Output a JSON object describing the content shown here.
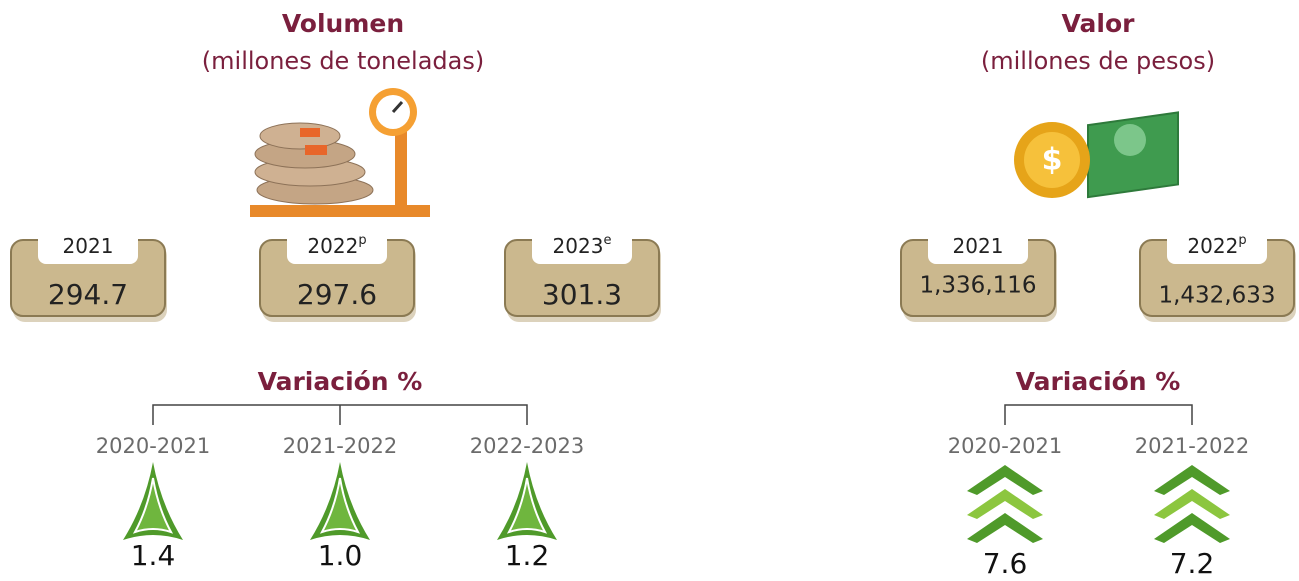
{
  "volumen": {
    "title": "Volumen",
    "subtitle": "(millones de toneladas)",
    "boxes": [
      {
        "year": "2021",
        "value": "294.7"
      },
      {
        "year": "2022",
        "sup": "p",
        "value": "297.6"
      },
      {
        "year": "2023",
        "sup": "e",
        "value": "301.3"
      }
    ],
    "variation": {
      "title": "Variación %",
      "items": [
        {
          "period": "2020-2021",
          "value": "1.4"
        },
        {
          "period": "2021-2022",
          "value": "1.0"
        },
        {
          "period": "2022-2023",
          "value": "1.2"
        }
      ]
    }
  },
  "valor": {
    "title": "Valor",
    "subtitle": "(millones de pesos)",
    "boxes": [
      {
        "year": "2021",
        "value": "1,336,116"
      },
      {
        "year": "2022",
        "sup": "p",
        "value": "1,432,633"
      }
    ],
    "variation": {
      "title": "Variación %",
      "items": [
        {
          "period": "2020-2021",
          "value": "7.6"
        },
        {
          "period": "2021-2022",
          "value": "7.2"
        }
      ]
    }
  }
}
